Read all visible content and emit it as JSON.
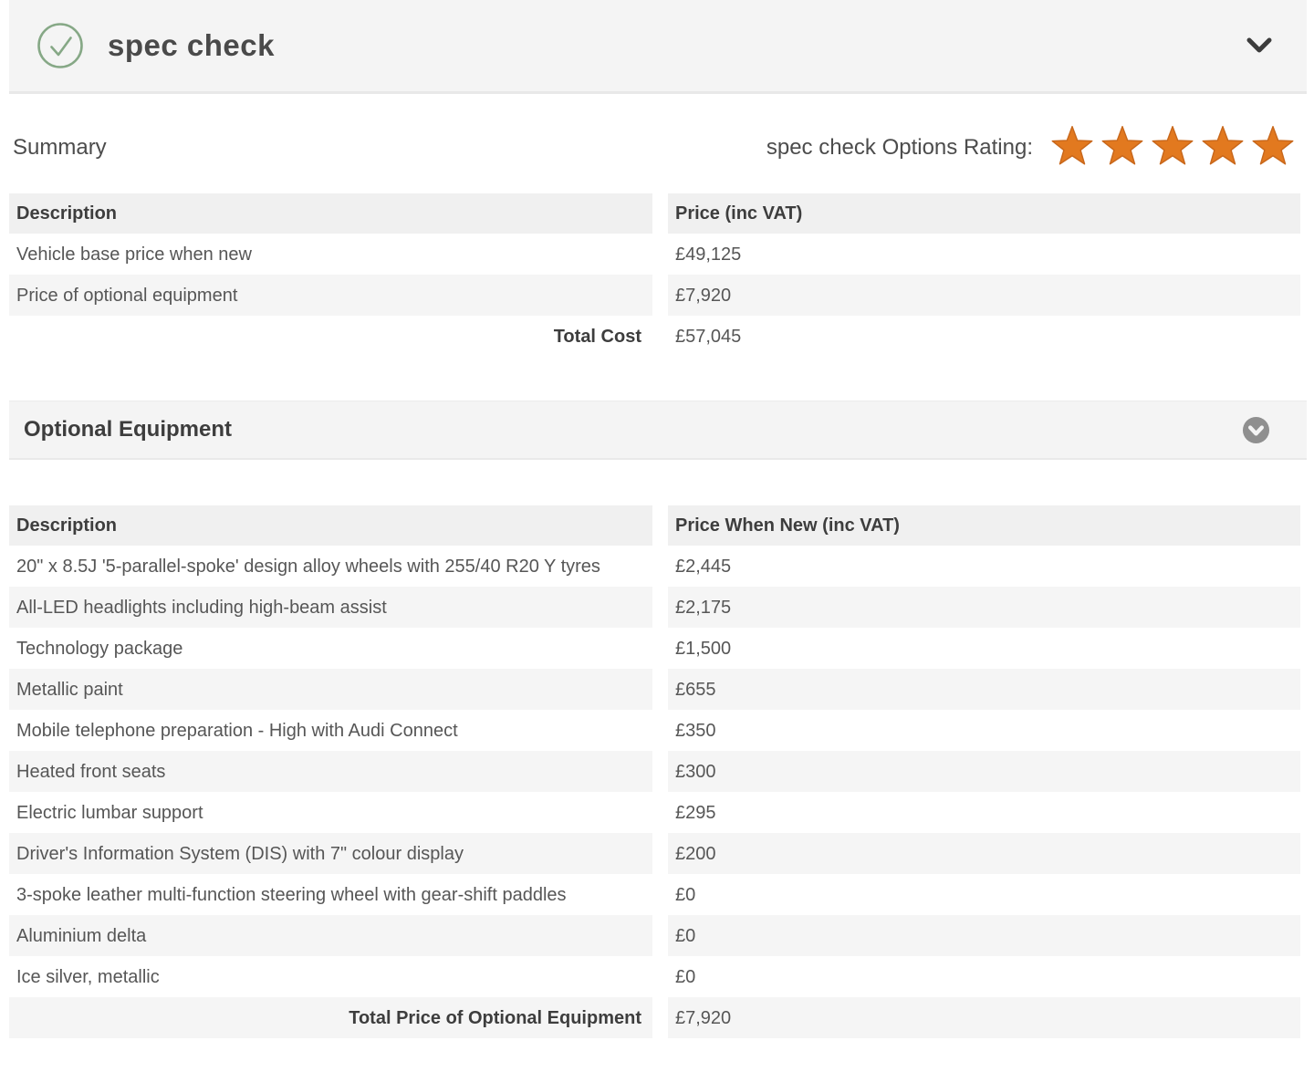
{
  "header": {
    "title": "spec check"
  },
  "summary": {
    "section_title": "Summary",
    "rating_label": "spec check Options Rating:",
    "rating_stars": 5,
    "table": {
      "columns": [
        "Description",
        "Price (inc VAT)"
      ],
      "rows": [
        {
          "description": "Vehicle base price when new",
          "price": "£49,125"
        },
        {
          "description": "Price of optional equipment",
          "price": "£7,920"
        }
      ],
      "total_label": "Total Cost",
      "total_price": "£57,045"
    }
  },
  "optional_equipment": {
    "section_title": "Optional Equipment",
    "table": {
      "columns": [
        "Description",
        "Price When New (inc VAT)"
      ],
      "rows": [
        {
          "description": "20\" x 8.5J '5-parallel-spoke' design alloy wheels with 255/40 R20 Y tyres",
          "price": "£2,445"
        },
        {
          "description": "All-LED headlights including high-beam assist",
          "price": "£2,175"
        },
        {
          "description": "Technology package",
          "price": "£1,500"
        },
        {
          "description": "Metallic paint",
          "price": "£655"
        },
        {
          "description": "Mobile telephone preparation - High with Audi Connect",
          "price": "£350"
        },
        {
          "description": "Heated front seats",
          "price": "£300"
        },
        {
          "description": "Electric lumbar support",
          "price": "£295"
        },
        {
          "description": "Driver's Information System (DIS) with 7\" colour display",
          "price": "£200"
        },
        {
          "description": "3-spoke leather multi-function steering wheel with gear-shift paddles",
          "price": "£0"
        },
        {
          "description": "Aluminium delta",
          "price": "£0"
        },
        {
          "description": "Ice silver, metallic",
          "price": "£0"
        }
      ],
      "total_label": "Total Price of Optional Equipment",
      "total_price": "£7,920"
    }
  },
  "icons": {
    "header_status": "check-circle",
    "header_collapse": "chevron-down",
    "equipment_collapse": "chevron-down-circle",
    "rating_star": "star"
  },
  "colors": {
    "accent_green": "#86a886",
    "star_orange": "#e2791f",
    "star_border": "#c8671b",
    "bar_gray": "#f4f4f4",
    "stripe_gray": "#f5f5f5",
    "header_row_gray": "#f0f0f0",
    "icon_dark": "#3c3c3c",
    "circle_gray": "#8f8f8f"
  }
}
